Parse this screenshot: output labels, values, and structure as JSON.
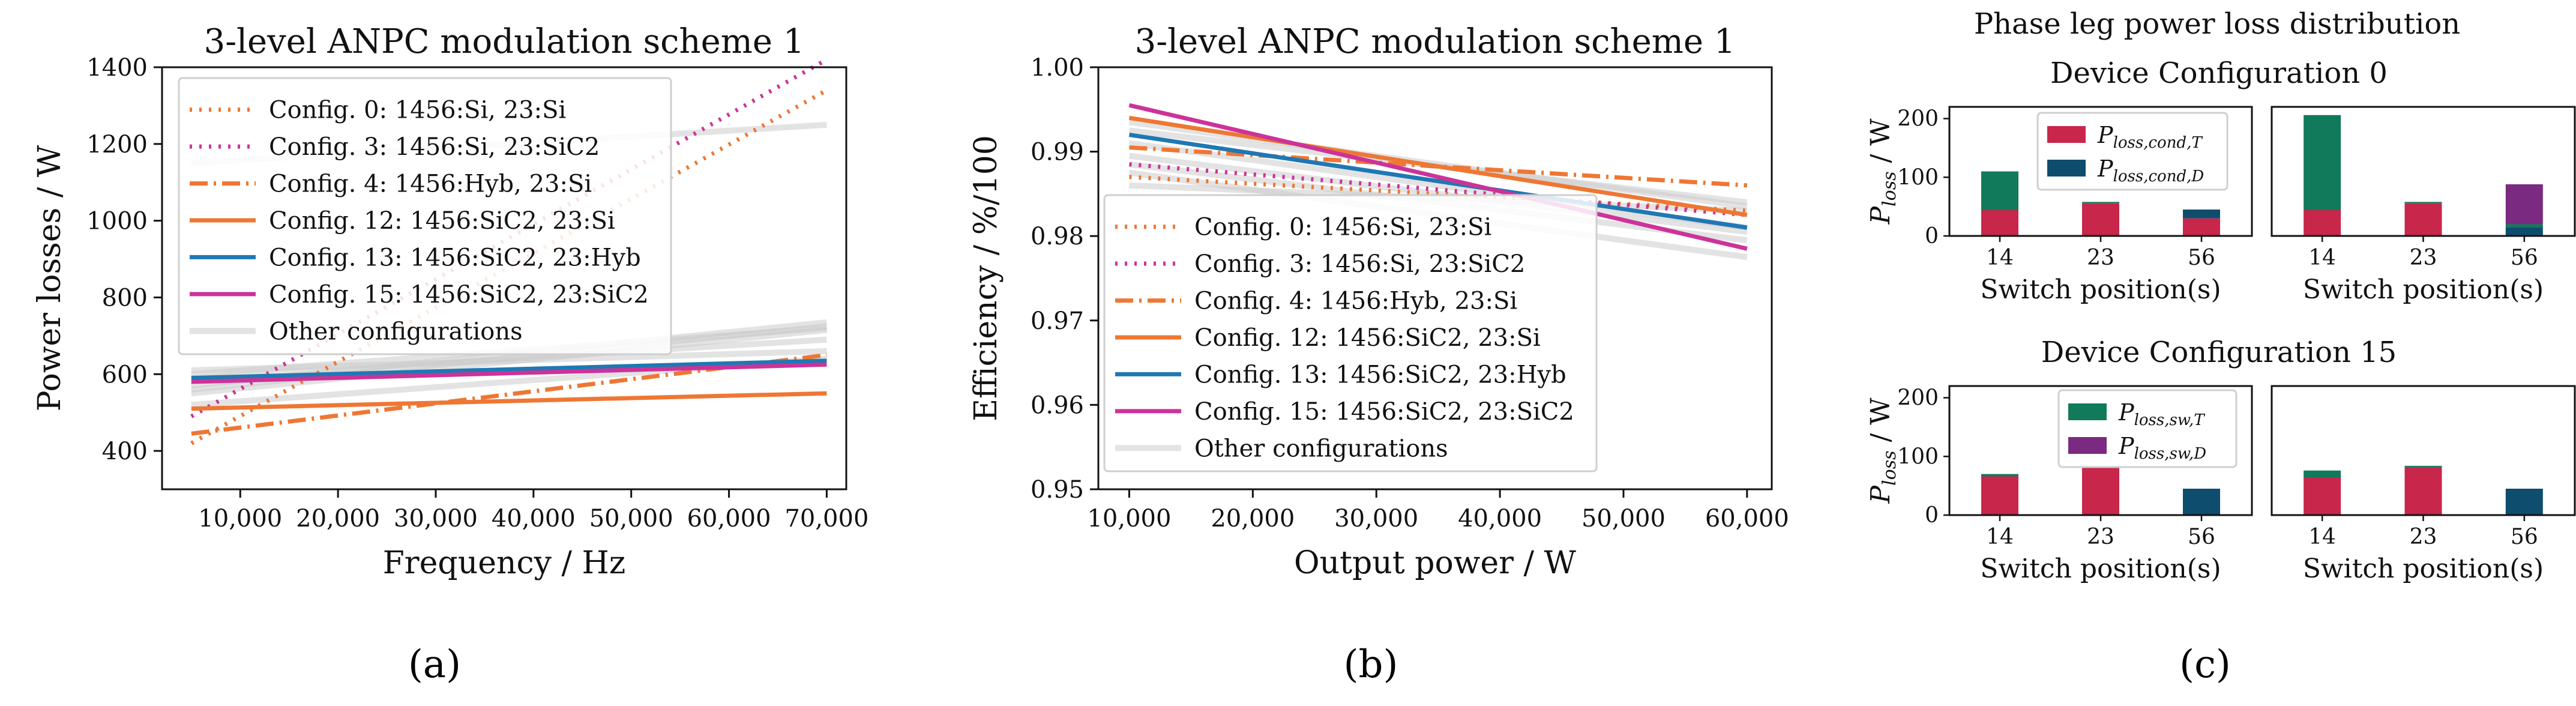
{
  "captions": [
    "(a)",
    "(b)",
    "(c)"
  ],
  "colors": {
    "orange": "#ee7733",
    "magenta": "#cc3399",
    "blue": "#1f78b4",
    "gray": "#cccccc",
    "red": "#c8264a",
    "green": "#117a5b",
    "purple": "#7a2a80",
    "navy": "#0e4d6e"
  },
  "chart_data": [
    {
      "type": "line",
      "title": "3-level ANPC modulation scheme 1",
      "xlabel": "Frequency / Hz",
      "ylabel": "Power losses / W",
      "xlim": [
        2000,
        72000
      ],
      "ylim": [
        300,
        1400
      ],
      "xticks": [
        10000,
        20000,
        30000,
        40000,
        50000,
        60000,
        70000
      ],
      "xtick_labels": [
        "10,000",
        "20,000",
        "30,000",
        "40,000",
        "50,000",
        "60,000",
        "70,000"
      ],
      "yticks": [
        400,
        600,
        800,
        1000,
        1200,
        1400
      ],
      "ytick_labels": [
        "400",
        "600",
        "800",
        "1000",
        "1200",
        "1400"
      ],
      "legend_position": "top-left",
      "series": [
        {
          "name": "Config. 0: 1456:Si, 23:Si",
          "style": "dotted",
          "color": "orange",
          "x": [
            5000,
            70000
          ],
          "y": [
            420,
            1340
          ]
        },
        {
          "name": "Config. 3: 1456:Si, 23:SiC2",
          "style": "dotted",
          "color": "magenta",
          "x": [
            5000,
            70000
          ],
          "y": [
            490,
            1420
          ]
        },
        {
          "name": "Config. 4: 1456:Hyb, 23:Si",
          "style": "dashdot",
          "color": "orange",
          "x": [
            5000,
            70000
          ],
          "y": [
            445,
            650
          ]
        },
        {
          "name": "Config. 12: 1456:SiC2, 23:Si",
          "style": "solid",
          "color": "orange",
          "x": [
            5000,
            70000
          ],
          "y": [
            510,
            550
          ]
        },
        {
          "name": "Config. 13: 1456:SiC2, 23:Hyb",
          "style": "solid",
          "color": "blue",
          "x": [
            5000,
            70000
          ],
          "y": [
            590,
            635
          ]
        },
        {
          "name": "Config. 15: 1456:SiC2, 23:SiC2",
          "style": "solid",
          "color": "magenta",
          "x": [
            5000,
            70000
          ],
          "y": [
            580,
            625
          ]
        },
        {
          "name": "Other configurations",
          "style": "solid",
          "color": "gray",
          "x": [
            5000,
            70000
          ],
          "y": [
            560,
            725
          ]
        }
      ],
      "other_lines": [
        {
          "x": [
            5000,
            70000
          ],
          "y": [
            570,
            735
          ]
        },
        {
          "x": [
            5000,
            70000
          ],
          "y": [
            550,
            715
          ]
        },
        {
          "x": [
            5000,
            70000
          ],
          "y": [
            590,
            690
          ]
        },
        {
          "x": [
            5000,
            70000
          ],
          "y": [
            610,
            660
          ]
        },
        {
          "x": [
            5000,
            70000
          ],
          "y": [
            520,
            640
          ]
        },
        {
          "x": [
            5000,
            70000
          ],
          "y": [
            600,
            720
          ]
        },
        {
          "x": [
            5000,
            70000
          ],
          "y": [
            1150,
            1250
          ]
        }
      ]
    },
    {
      "type": "line",
      "title": "3-level ANPC modulation scheme 1",
      "xlabel": "Output power / W",
      "ylabel": "Efficiency / %/100",
      "xlim": [
        7500,
        62000
      ],
      "ylim": [
        0.95,
        1.0
      ],
      "xticks": [
        10000,
        20000,
        30000,
        40000,
        50000,
        60000
      ],
      "xtick_labels": [
        "10,000",
        "20,000",
        "30,000",
        "40,000",
        "50,000",
        "60,000"
      ],
      "yticks": [
        0.95,
        0.96,
        0.97,
        0.98,
        0.99,
        1.0
      ],
      "ytick_labels": [
        "0.95",
        "0.96",
        "0.97",
        "0.98",
        "0.99",
        "1.00"
      ],
      "legend_position": "center-left",
      "series": [
        {
          "name": "Config. 0: 1456:Si, 23:Si",
          "style": "dotted",
          "color": "orange",
          "x": [
            10000,
            60000
          ],
          "y": [
            0.987,
            0.983
          ]
        },
        {
          "name": "Config. 3: 1456:Si, 23:SiC2",
          "style": "dotted",
          "color": "magenta",
          "x": [
            10000,
            60000
          ],
          "y": [
            0.9885,
            0.9825
          ]
        },
        {
          "name": "Config. 4: 1456:Hyb, 23:Si",
          "style": "dashdot",
          "color": "orange",
          "x": [
            10000,
            60000
          ],
          "y": [
            0.9905,
            0.986
          ]
        },
        {
          "name": "Config. 12: 1456:SiC2, 23:Si",
          "style": "solid",
          "color": "orange",
          "x": [
            10000,
            60000
          ],
          "y": [
            0.994,
            0.9825
          ]
        },
        {
          "name": "Config. 13: 1456:SiC2, 23:Hyb",
          "style": "solid",
          "color": "blue",
          "x": [
            10000,
            60000
          ],
          "y": [
            0.992,
            0.981
          ]
        },
        {
          "name": "Config. 15: 1456:SiC2, 23:SiC2",
          "style": "solid",
          "color": "magenta",
          "x": [
            10000,
            60000
          ],
          "y": [
            0.9955,
            0.9785
          ]
        },
        {
          "name": "Other configurations",
          "style": "solid",
          "color": "gray",
          "x": [
            10000,
            60000
          ],
          "y": [
            0.9895,
            0.9805
          ]
        }
      ],
      "other_lines": [
        {
          "x": [
            10000,
            60000
          ],
          "y": [
            0.9925,
            0.984
          ]
        },
        {
          "x": [
            10000,
            60000
          ],
          "y": [
            0.991,
            0.981
          ]
        },
        {
          "x": [
            10000,
            60000
          ],
          "y": [
            0.9885,
            0.9795
          ]
        },
        {
          "x": [
            10000,
            60000
          ],
          "y": [
            0.986,
            0.983
          ]
        },
        {
          "x": [
            10000,
            60000
          ],
          "y": [
            0.9875,
            0.9775
          ]
        },
        {
          "x": [
            10000,
            60000
          ],
          "y": [
            0.9935,
            0.9835
          ]
        }
      ]
    },
    {
      "type": "bar",
      "stacked": true,
      "title": "Phase leg power loss distribution",
      "ylabel": "P_loss / W",
      "xlabel": "Switch position(s)",
      "categories": [
        "14",
        "23",
        "56"
      ],
      "ylim": [
        0,
        220
      ],
      "yticks": [
        0,
        100,
        200
      ],
      "stack_order": [
        "P_loss,cond,T",
        "P_loss,cond,D",
        "P_loss,sw,T",
        "P_loss,sw,D"
      ],
      "legend": [
        {
          "label": "P",
          "sub": "loss,cond,T",
          "color": "red"
        },
        {
          "label": "P",
          "sub": "loss,cond,D",
          "color": "navy"
        },
        {
          "label": "P",
          "sub": "loss,sw,T",
          "color": "green"
        },
        {
          "label": "P",
          "sub": "loss,sw,D",
          "color": "purple"
        }
      ],
      "groups": [
        {
          "subtitle": "Device Configuration 0",
          "panels": [
            {
              "series": [
                {
                  "name": "P_loss,cond,T",
                  "values": [
                    44,
                    56,
                    30
                  ]
                },
                {
                  "name": "P_loss,cond,D",
                  "values": [
                    0,
                    0,
                    15
                  ]
                },
                {
                  "name": "P_loss,sw,T",
                  "values": [
                    66,
                    2,
                    0
                  ]
                },
                {
                  "name": "P_loss,sw,D",
                  "values": [
                    0,
                    0,
                    0
                  ]
                }
              ]
            },
            {
              "series": [
                {
                  "name": "P_loss,cond,T",
                  "values": [
                    44,
                    56,
                    0
                  ]
                },
                {
                  "name": "P_loss,cond,D",
                  "values": [
                    0,
                    0,
                    15
                  ]
                },
                {
                  "name": "P_loss,sw,T",
                  "values": [
                    162,
                    2,
                    5
                  ]
                },
                {
                  "name": "P_loss,sw,D",
                  "values": [
                    0,
                    0,
                    68
                  ]
                }
              ]
            }
          ]
        },
        {
          "subtitle": "Device Configuration 15",
          "panels": [
            {
              "series": [
                {
                  "name": "P_loss,cond,T",
                  "values": [
                    66,
                    82,
                    0
                  ]
                },
                {
                  "name": "P_loss,cond,D",
                  "values": [
                    0,
                    0,
                    45
                  ]
                },
                {
                  "name": "P_loss,sw,T",
                  "values": [
                    4,
                    2,
                    0
                  ]
                },
                {
                  "name": "P_loss,sw,D",
                  "values": [
                    0,
                    0,
                    0
                  ]
                }
              ]
            },
            {
              "series": [
                {
                  "name": "P_loss,cond,T",
                  "values": [
                    64,
                    82,
                    0
                  ]
                },
                {
                  "name": "P_loss,cond,D",
                  "values": [
                    0,
                    0,
                    45
                  ]
                },
                {
                  "name": "P_loss,sw,T",
                  "values": [
                    12,
                    2,
                    0
                  ]
                },
                {
                  "name": "P_loss,sw,D",
                  "values": [
                    0,
                    0,
                    0
                  ]
                }
              ]
            }
          ]
        }
      ]
    }
  ]
}
